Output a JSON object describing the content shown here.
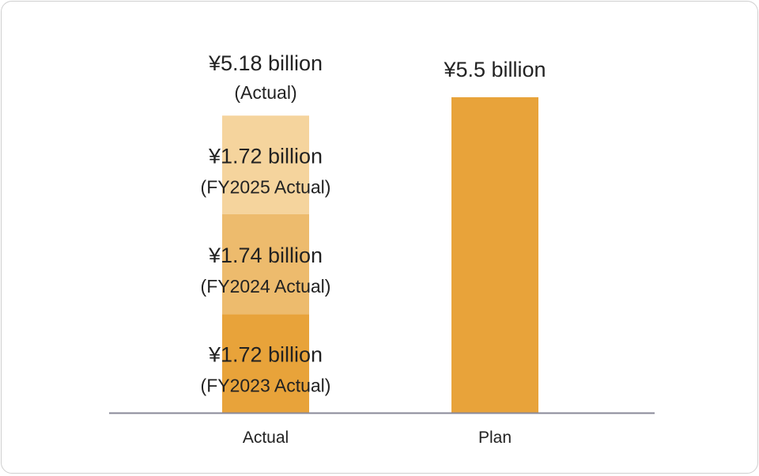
{
  "chart_data": {
    "type": "bar",
    "stacked": true,
    "title": "",
    "xlabel": "",
    "ylabel": "",
    "categories": [
      "Actual",
      "Plan"
    ],
    "ylim": [
      0,
      5.5
    ],
    "grid": false,
    "legend": "none",
    "series": [
      {
        "color": "#e8a33a",
        "values": [
          1.72,
          5.5
        ],
        "labels": [
          {
            "main": "¥1.72 billion",
            "sub": "(FY2023 Actual)"
          },
          {
            "main": "¥5.5 billion",
            "sub": ""
          }
        ]
      },
      {
        "color": "#edbb6d",
        "values": [
          1.74,
          0
        ],
        "labels": [
          {
            "main": "¥1.74 billion",
            "sub": "(FY2024 Actual)"
          },
          null
        ]
      },
      {
        "color": "#f5d49d",
        "values": [
          1.72,
          0
        ],
        "labels": [
          {
            "main": "¥1.72 billion",
            "sub": "(FY2025 Actual)"
          },
          null
        ]
      }
    ],
    "totals": [
      {
        "main": "¥5.18 billion",
        "sub": "(Actual)"
      },
      null
    ],
    "axis_color": "#8a8a99"
  }
}
